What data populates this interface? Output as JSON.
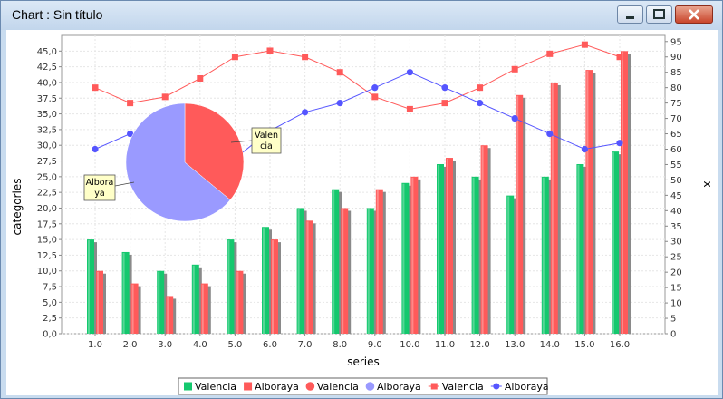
{
  "window": {
    "title": "Chart : Sin título"
  },
  "chart_data": {
    "type": "bar+line+pie",
    "xlabel": "series",
    "ylabel": "categories",
    "y2label": "x",
    "ylim": [
      0,
      47.5
    ],
    "y2lim": [
      0,
      97
    ],
    "categories": [
      "1.0",
      "2.0",
      "3.0",
      "4.0",
      "5.0",
      "6.0",
      "7.0",
      "8.0",
      "9.0",
      "10.0",
      "11.0",
      "12.0",
      "13.0",
      "14.0",
      "15.0",
      "16.0"
    ],
    "left_ticks": [
      "0,0",
      "2,5",
      "5,0",
      "7,5",
      "10,0",
      "12,5",
      "15,0",
      "17,5",
      "20,0",
      "22,5",
      "25,0",
      "27,5",
      "30,0",
      "32,5",
      "35,0",
      "37,5",
      "40,0",
      "42,5",
      "45,0"
    ],
    "right_ticks": [
      "0",
      "5",
      "10",
      "15",
      "20",
      "25",
      "30",
      "35",
      "40",
      "45",
      "50",
      "55",
      "60",
      "65",
      "70",
      "75",
      "80",
      "85",
      "90",
      "95"
    ],
    "bar_series": [
      {
        "name": "Valencia",
        "color": "#14c86e",
        "values": [
          15,
          13,
          10,
          11,
          15,
          17,
          20,
          23,
          20,
          24,
          27,
          25,
          22,
          25,
          27,
          29
        ]
      },
      {
        "name": "Alboraya",
        "color": "#ff5a5a",
        "values": [
          10,
          8,
          6,
          8,
          10,
          15,
          18,
          20,
          23,
          25,
          28,
          30,
          38,
          40,
          42,
          45
        ]
      }
    ],
    "line_series": [
      {
        "name": "Valencia",
        "color": "#ff5a5a",
        "values": [
          80,
          75,
          77,
          83,
          90,
          92,
          90,
          85,
          77,
          73,
          75,
          80,
          86,
          91,
          94,
          90
        ]
      },
      {
        "name": "Alboraya",
        "color": "#5555ff",
        "values": [
          60,
          65,
          60,
          50,
          57,
          66,
          72,
          75,
          80,
          85,
          80,
          75,
          70,
          65,
          60,
          62
        ]
      }
    ],
    "pie": {
      "slices": [
        {
          "name": "Valencia",
          "value": 36,
          "color": "#ff5a5a",
          "label": [
            "Valen",
            "cia"
          ]
        },
        {
          "name": "Alboraya",
          "value": 64,
          "color": "#9a9aff",
          "label": [
            "Albora",
            "ya"
          ]
        }
      ]
    },
    "legend": {
      "position": "bottom",
      "items": [
        {
          "label": "Valencia",
          "kind": "square",
          "color": "#14c86e"
        },
        {
          "label": "Alboraya",
          "kind": "square",
          "color": "#ff5a5a"
        },
        {
          "label": "Valencia",
          "kind": "circle",
          "color": "#ff5a5a"
        },
        {
          "label": "Alboraya",
          "kind": "circle",
          "color": "#9a9aff"
        },
        {
          "label": "Valencia",
          "kind": "line",
          "color": "#ff5a5a"
        },
        {
          "label": "Alboraya",
          "kind": "line",
          "color": "#5555ff"
        }
      ]
    }
  }
}
